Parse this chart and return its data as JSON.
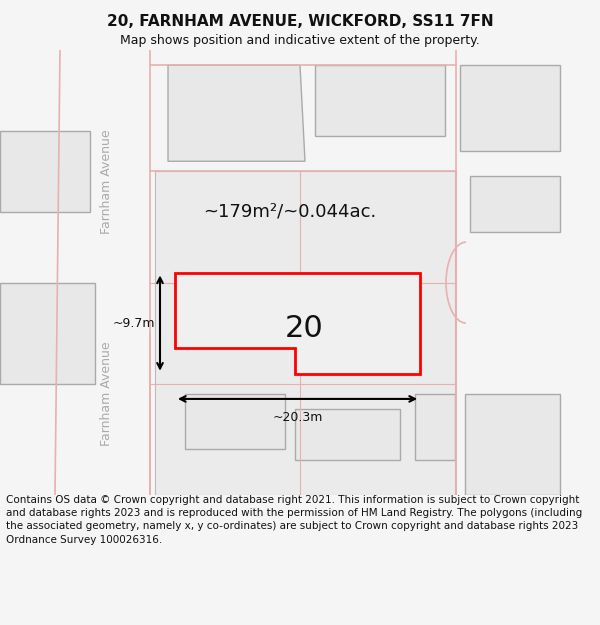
{
  "title": "20, FARNHAM AVENUE, WICKFORD, SS11 7FN",
  "subtitle": "Map shows position and indicative extent of the property.",
  "footer": "Contains OS data © Crown copyright and database right 2021. This information is subject to Crown copyright and database rights 2023 and is reproduced with the permission of HM Land Registry. The polygons (including the associated geometry, namely x, y co-ordinates) are subject to Crown copyright and database rights 2023 Ordnance Survey 100026316.",
  "area_label": "~179m²/~0.044ac.",
  "number_label": "20",
  "width_label": "~20.3m",
  "height_label": "~9.7m",
  "bg_color": "#f5f5f5",
  "map_bg": "#ffffff",
  "building_fill": "#e0e0e0",
  "building_edge": "#c0c0c0",
  "road_color": "#d0d0d0",
  "highlight_color": "#ff0000",
  "road_line_color": "#e8b0b0",
  "street_label": "Farnham Avenue",
  "title_fontsize": 11,
  "subtitle_fontsize": 9,
  "footer_fontsize": 7.5
}
